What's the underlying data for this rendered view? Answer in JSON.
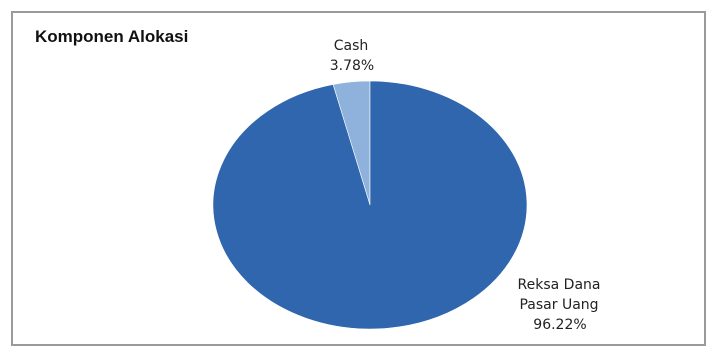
{
  "chart_data": {
    "type": "pie",
    "title": "Komponen Alokasi",
    "slices": [
      {
        "name": "Cash",
        "value": 3.78,
        "label_lines": [
          "Cash",
          "3.78%"
        ],
        "color": "#8eb2dc"
      },
      {
        "name": "Reksa Dana Pasar Uang",
        "value": 96.22,
        "label_lines": [
          "Reksa Dana",
          "Pasar Uang",
          "96.22%"
        ],
        "color": "#2f66ad"
      }
    ],
    "start_angle_deg": 0,
    "direction": "counterclockwise",
    "legend": "none"
  }
}
